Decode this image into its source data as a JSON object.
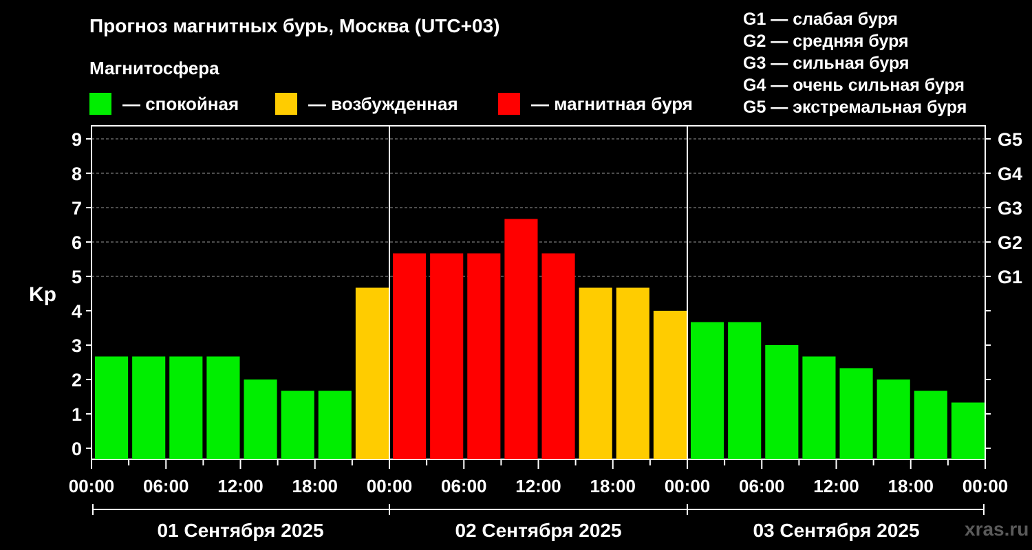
{
  "title": "Прогноз магнитных бурь, Москва (UTC+03)",
  "magnetosphere": {
    "heading": "Магнитосфера",
    "items": [
      {
        "label": "— спокойная",
        "color": "#00ee00"
      },
      {
        "label": "— возбужденная",
        "color": "#ffcc00"
      },
      {
        "label": "— магнитная буря",
        "color": "#ff0000"
      }
    ]
  },
  "g_legend": [
    "G1 — слабая буря",
    "G2 — средняя буря",
    "G3 — сильная буря",
    "G4 — очень сильная буря",
    "G5 — экстремальная буря"
  ],
  "watermark": "xras.ru",
  "chart_data": {
    "type": "bar",
    "ylabel": "Kp",
    "ylim": [
      0,
      9
    ],
    "y_ticks": [
      0,
      1,
      2,
      3,
      4,
      5,
      6,
      7,
      8,
      9
    ],
    "right_axis_labels": [
      {
        "value": 5,
        "label": "G1"
      },
      {
        "value": 6,
        "label": "G2"
      },
      {
        "value": 7,
        "label": "G3"
      },
      {
        "value": 8,
        "label": "G4"
      },
      {
        "value": 9,
        "label": "G5"
      }
    ],
    "x_tick_labels": [
      "00:00",
      "06:00",
      "12:00",
      "18:00",
      "00:00",
      "06:00",
      "12:00",
      "18:00",
      "00:00",
      "06:00",
      "12:00",
      "18:00",
      "00:00"
    ],
    "days": [
      "01 Сентября 2025",
      "02 Сентября 2025",
      "03 Сентября 2025"
    ],
    "interval_hours": 3,
    "grid": "dashed horizontal at integer Kp 5–9",
    "values": [
      2.67,
      2.67,
      2.67,
      2.67,
      2.0,
      1.67,
      1.67,
      4.67,
      5.67,
      5.67,
      5.67,
      6.67,
      5.67,
      4.67,
      4.67,
      4.0,
      3.67,
      3.67,
      3.0,
      2.67,
      2.33,
      2.0,
      1.67,
      1.33
    ],
    "colors": {
      "calm": "#00ee00",
      "excited": "#ffcc00",
      "storm": "#ff0000"
    }
  }
}
